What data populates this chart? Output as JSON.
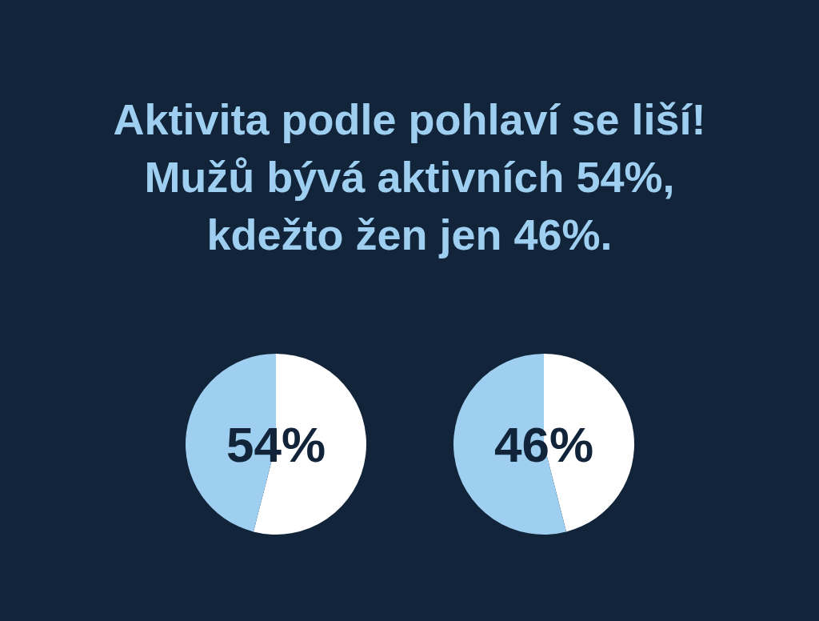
{
  "chart_data": [
    {
      "type": "pie",
      "title": "Aktivita podle pohlaví se liší!\nMužů bývá aktivních 54%,\nkdežto žen jen 46%.",
      "categories": [
        null,
        null
      ],
      "values": [
        54,
        46
      ],
      "colors": [
        "#ffffff",
        "#9ecff0"
      ],
      "value_labels": [
        "54%",
        null
      ]
    },
    {
      "type": "pie",
      "categories": [
        null,
        null
      ],
      "values": [
        46,
        54
      ],
      "colors": [
        "#ffffff",
        "#9ecff0"
      ],
      "value_labels": [
        "46%",
        null
      ]
    }
  ]
}
